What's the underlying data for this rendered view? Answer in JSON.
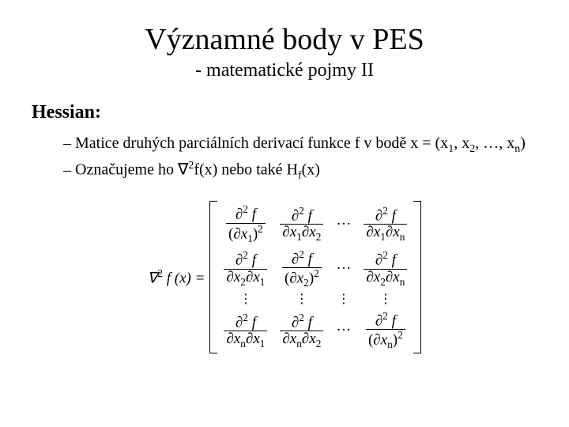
{
  "title": "Významné body v PES",
  "subtitle": "- matematické pojmy II",
  "section_heading": "Hessian:",
  "bullets": {
    "b1_pre": "Matice druhých parciálních derivací funkce f v bodě x = (x",
    "b1_s1": "1",
    "b1_mid1": ", x",
    "b1_s2": "2",
    "b1_mid2": ", …, x",
    "b1_sn": "n",
    "b1_post": ")",
    "b2_pre": "Označujeme ho ∇",
    "b2_sup": "2",
    "b2_mid": "f(x) nebo také H",
    "b2_subf": "f",
    "b2_post": "(x)"
  },
  "equation": {
    "lhs_nabla": "∇",
    "lhs_sup": "2",
    "lhs_after": " f (x) =",
    "d2f": "∂",
    "d2f_sup": "2",
    "d2f_f": " f",
    "dx": "∂x",
    "dx1": "1",
    "dx2": "2",
    "dxn": "n",
    "paren_open": "(",
    "paren_close": ")",
    "sq_sup": "2",
    "dots": "···",
    "vdots": "⋮"
  },
  "style": {
    "background": "#ffffff",
    "text_color": "#000000",
    "title_fontsize": 38,
    "subtitle_fontsize": 24,
    "heading_fontsize": 24,
    "body_fontsize": 20,
    "eq_fontsize": 19
  }
}
